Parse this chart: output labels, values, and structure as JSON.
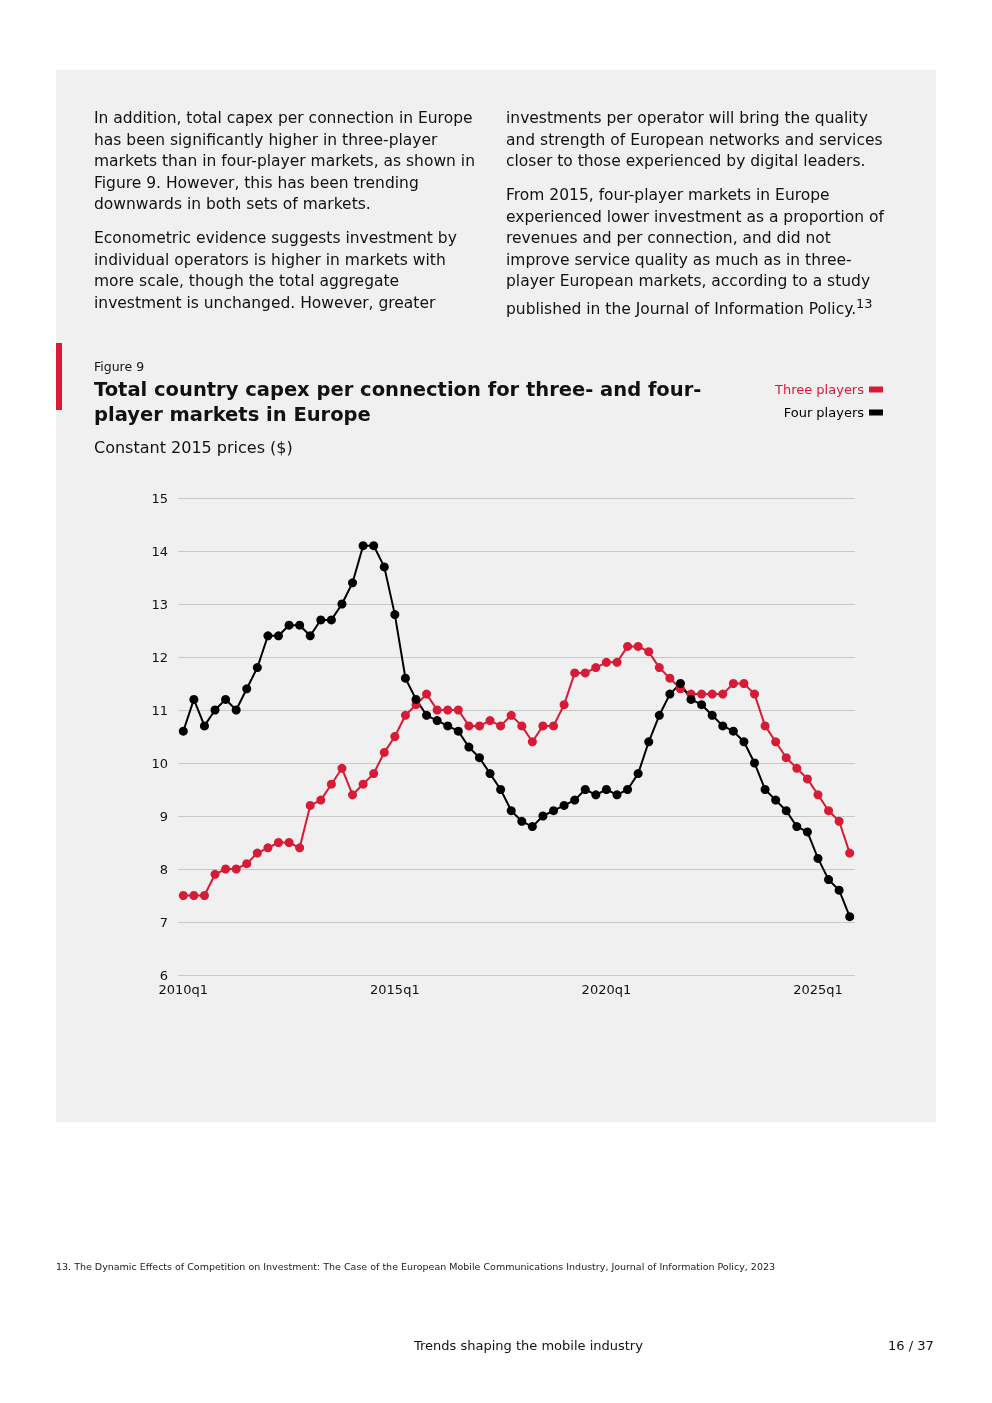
{
  "chart_data": {
    "type": "line",
    "subtitle": "Figure 9",
    "title": "Total country capex per connection for three- and four-player markets in Europe",
    "ylabel": "Constant 2015 prices ($)",
    "annotations": [
      "In addition, total capex per connection in Europe has been significantly higher in three-player markets than in four-player markets, as shown in Figure 9. However, this has been trending downwards in both sets of markets.",
      "Econometric evidence suggests investment by individual operators is higher in markets with more scale, though the total aggregate investment is unchanged. However, greater",
      "investments per operator will bring the quality and strength of European networks and services closer to those experienced by digital leaders.",
      "From 2015, four-player markets in Europe experienced lower investment as a proportion of revenues and per connection, and did not improve service quality as much as in three-player European markets, according to a study published in the Journal of Information Policy.$^{13}$",
      "13.  The Dynamic Effects of Competition on Investment: The Case of the European Mobile Communications Industry, Journal of Information Policy, 2023",
      "Trends shaping the mobile industry",
      "16 / 37"
    ],
    "categories": [
      "2010q1",
      null,
      null,
      null,
      null,
      null,
      null,
      null,
      null,
      null,
      null,
      null,
      null,
      null,
      null,
      null,
      null,
      null,
      null,
      null,
      "2015q1",
      null,
      null,
      null,
      null,
      null,
      null,
      null,
      null,
      null,
      null,
      null,
      null,
      null,
      null,
      null,
      null,
      null,
      null,
      null,
      "2020q1",
      null,
      null,
      null,
      null,
      null,
      null,
      null,
      null,
      null,
      null,
      null,
      null,
      null,
      null,
      null,
      null,
      null,
      null,
      null,
      "2025q1",
      null,
      null,
      null
    ],
    "series": [
      {
        "name": "Three players",
        "color": "#d71a35",
        "values": [
          7.5,
          7.5,
          7.5,
          7.9,
          8.0,
          8.0,
          8.1,
          8.3,
          8.4,
          8.5,
          8.5,
          8.4,
          9.2,
          9.3,
          9.6,
          9.9,
          9.4,
          9.6,
          9.8,
          10.2,
          10.5,
          10.9,
          11.1,
          11.3,
          11.0,
          11.0,
          11.0,
          10.7,
          10.7,
          10.8,
          10.7,
          10.9,
          10.7,
          10.4,
          10.7,
          10.7,
          11.1,
          11.7,
          11.7,
          11.8,
          11.9,
          11.9,
          12.2,
          12.2,
          12.1,
          11.8,
          11.6,
          11.4,
          11.3,
          11.3,
          11.3,
          11.3,
          11.5,
          11.5,
          11.3,
          10.7,
          10.4,
          10.1,
          9.9,
          9.7,
          9.4,
          9.1,
          8.9,
          8.3
        ]
      },
      {
        "name": "Four players",
        "color": "#000000",
        "values": [
          10.6,
          11.2,
          10.7,
          11.0,
          11.2,
          11.0,
          11.4,
          11.8,
          12.4,
          12.4,
          12.6,
          12.6,
          12.4,
          12.7,
          12.7,
          13.0,
          13.4,
          14.1,
          14.1,
          13.7,
          12.8,
          11.6,
          11.2,
          10.9,
          10.8,
          10.7,
          10.6,
          10.3,
          10.1,
          9.8,
          9.5,
          9.1,
          8.9,
          8.8,
          9.0,
          9.1,
          9.2,
          9.3,
          9.5,
          9.4,
          9.5,
          9.4,
          9.5,
          9.8,
          10.4,
          10.9,
          11.3,
          11.5,
          11.2,
          11.1,
          10.9,
          10.7,
          10.6,
          10.4,
          10.0,
          9.5,
          9.3,
          9.1,
          8.8,
          8.7,
          8.2,
          7.8,
          7.6,
          7.1
        ]
      }
    ],
    "ylim": [
      6,
      15
    ],
    "yticks": [
      6,
      7,
      8,
      9,
      10,
      11,
      12,
      13,
      14,
      15
    ],
    "grid": "y",
    "legend": "top right",
    "marker": "circle",
    "line_style": "solid"
  }
}
